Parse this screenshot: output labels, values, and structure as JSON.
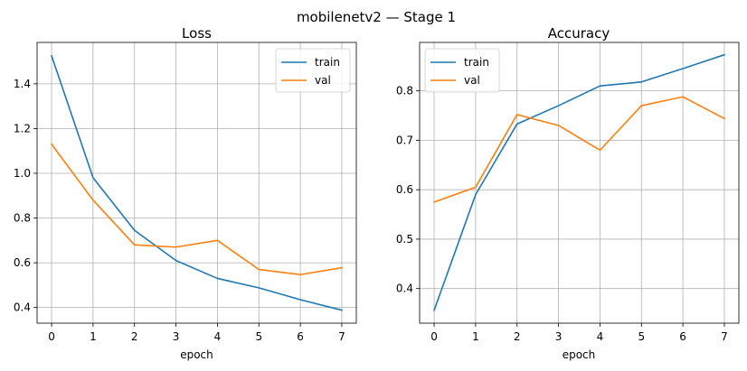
{
  "figure": {
    "suptitle": "mobilenetv2 — Stage 1"
  },
  "colors": {
    "train": "#1f77b4",
    "val": "#ff7f0e"
  },
  "chart_data": [
    {
      "type": "line",
      "title": "Loss",
      "xlabel": "epoch",
      "ylabel": "",
      "x": [
        0,
        1,
        2,
        3,
        4,
        5,
        6,
        7
      ],
      "xticks": [
        "0",
        "1",
        "2",
        "3",
        "4",
        "5",
        "6",
        "7"
      ],
      "yticks": [
        "0.4",
        "0.6",
        "0.8",
        "1.0",
        "1.2",
        "1.4"
      ],
      "ytick_values": [
        0.4,
        0.6,
        0.8,
        1.0,
        1.2,
        1.4
      ],
      "xlim": [
        -0.35,
        7.35
      ],
      "ylim": [
        0.33,
        1.585
      ],
      "grid": true,
      "legend_position": "top-right",
      "series": [
        {
          "name": "train",
          "values": [
            1.525,
            0.98,
            0.745,
            0.61,
            0.53,
            0.488,
            0.435,
            0.388
          ]
        },
        {
          "name": "val",
          "values": [
            1.13,
            0.88,
            0.68,
            0.67,
            0.7,
            0.57,
            0.547,
            0.578
          ]
        }
      ]
    },
    {
      "type": "line",
      "title": "Accuracy",
      "xlabel": "epoch",
      "ylabel": "",
      "x": [
        0,
        1,
        2,
        3,
        4,
        5,
        6,
        7
      ],
      "xticks": [
        "0",
        "1",
        "2",
        "3",
        "4",
        "5",
        "6",
        "7"
      ],
      "yticks": [
        "0.4",
        "0.5",
        "0.6",
        "0.7",
        "0.8"
      ],
      "ytick_values": [
        0.4,
        0.5,
        0.6,
        0.7,
        0.8
      ],
      "xlim": [
        -0.35,
        7.35
      ],
      "ylim": [
        0.33,
        0.898
      ],
      "grid": true,
      "legend_position": "top-left",
      "series": [
        {
          "name": "train",
          "values": [
            0.356,
            0.59,
            0.733,
            0.77,
            0.81,
            0.818,
            0.845,
            0.873
          ]
        },
        {
          "name": "val",
          "values": [
            0.575,
            0.605,
            0.752,
            0.73,
            0.68,
            0.77,
            0.788,
            0.744
          ]
        }
      ]
    }
  ]
}
